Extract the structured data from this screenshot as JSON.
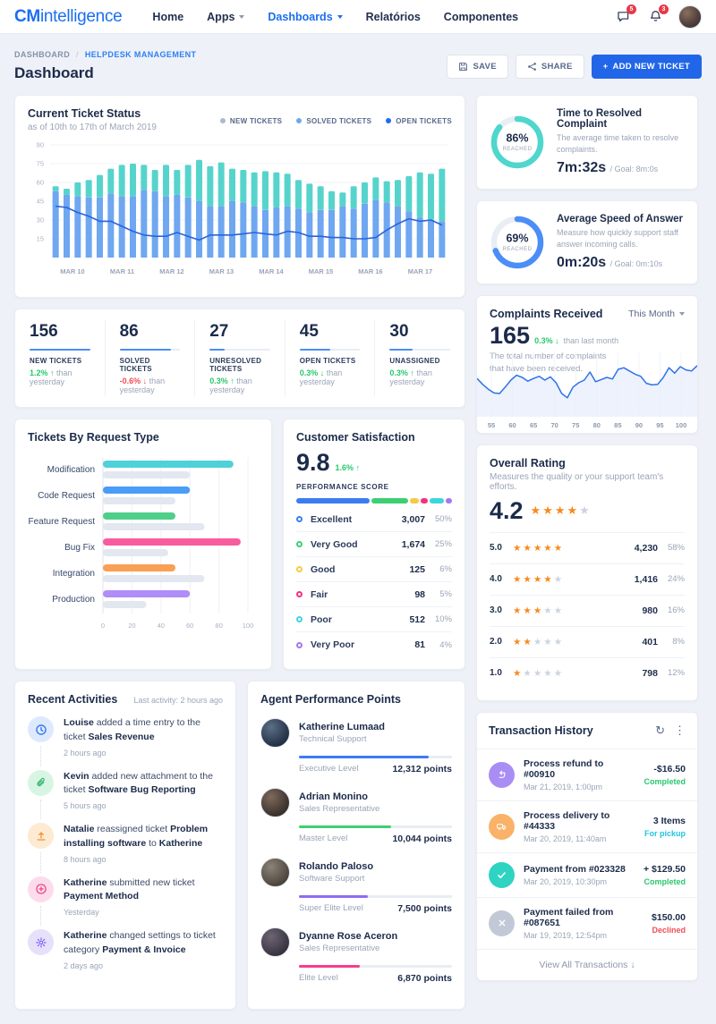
{
  "nav": {
    "brand_bold": "CM",
    "brand_rest": "intelligence",
    "items": [
      {
        "label": "Home"
      },
      {
        "label": "Apps",
        "dropdown": true
      },
      {
        "label": "Dashboards",
        "dropdown": true,
        "active": true
      },
      {
        "label": "Relatórios"
      },
      {
        "label": "Componentes"
      }
    ],
    "badges": {
      "messages": "5",
      "alerts": "3"
    }
  },
  "header": {
    "breadcrumb": [
      "DASHBOARD",
      "HELPDESK MANAGEMENT"
    ],
    "sep": "/",
    "title": "Dashboard",
    "save_label": "SAVE",
    "share_label": "SHARE",
    "add_ticket_label": "ADD NEW TICKET"
  },
  "ticket_status": {
    "title": "Current Ticket Status",
    "subtitle": "as of 10th to 17th of March 2019",
    "legend": [
      {
        "label": "NEW TICKETS",
        "color": "#aeb9c9"
      },
      {
        "label": "SOLVED TICKETS",
        "color": "#6fa7f0"
      },
      {
        "label": "OPEN TICKETS",
        "color": "#1f6bf2"
      }
    ]
  },
  "chart_data": [
    {
      "id": "ticket-status",
      "type": "bar",
      "title": "Current Ticket Status",
      "x_labels": [
        "MAR 10",
        "MAR 11",
        "MAR 12",
        "MAR 13",
        "MAR 14",
        "MAR 15",
        "MAR 16",
        "MAR 17"
      ],
      "ylim": [
        0,
        90
      ],
      "yticks": [
        15,
        30,
        45,
        60,
        75,
        90
      ],
      "series": [
        {
          "name": "SOLVED TICKETS",
          "type": "bar",
          "color": "#6fa7f0",
          "values": [
            53,
            50,
            49,
            48,
            48,
            51,
            49,
            49,
            54,
            53,
            49,
            50,
            48,
            45,
            41,
            41,
            45,
            44,
            41,
            38,
            40,
            41,
            39,
            36,
            38,
            38,
            41,
            39,
            43,
            46,
            44,
            41,
            37,
            32,
            30,
            29
          ]
        },
        {
          "name": "NEW TICKETS",
          "type": "bar-stacked-top",
          "color": "#56d4cc",
          "values": [
            4,
            5,
            11,
            14,
            18,
            20,
            25,
            26,
            20,
            17,
            25,
            20,
            26,
            33,
            32,
            35,
            26,
            26,
            27,
            31,
            28,
            26,
            23,
            23,
            19,
            15,
            11,
            18,
            17,
            18,
            17,
            21,
            28,
            36,
            37,
            42
          ]
        },
        {
          "name": "OPEN TICKETS",
          "type": "line",
          "color": "#2b63d9",
          "values": [
            41,
            40,
            36,
            33,
            29,
            29,
            25,
            21,
            18,
            17,
            17,
            20,
            17,
            14,
            18,
            18,
            18,
            19,
            20,
            19,
            18,
            21,
            20,
            17,
            17,
            16,
            16,
            15,
            15,
            16,
            22,
            27,
            31,
            29,
            30,
            26
          ]
        }
      ]
    },
    {
      "id": "request-type",
      "type": "bar",
      "title": "Tickets By Request Type",
      "categories": [
        "Modification",
        "Code Request",
        "Feature Request",
        "Bug Fix",
        "Integration",
        "Production"
      ],
      "xlim": [
        0,
        100
      ],
      "xticks": [
        0,
        20,
        40,
        60,
        80,
        100
      ],
      "series": [
        {
          "name": "current",
          "values": [
            90,
            60,
            50,
            95,
            50,
            60
          ],
          "colors": [
            "#4fd1d9",
            "#4a9cf8",
            "#4fcf8a",
            "#f85c9f",
            "#f9a054",
            "#b08df7"
          ]
        },
        {
          "name": "previous",
          "color": "#e2e7f0",
          "values": [
            60,
            50,
            70,
            45,
            70,
            30
          ]
        }
      ]
    },
    {
      "id": "complaints",
      "type": "area",
      "x_labels": [
        "55",
        "60",
        "65",
        "70",
        "75",
        "80",
        "85",
        "90",
        "95",
        "100"
      ],
      "color": "#2f72e8",
      "fill": "#e9effb",
      "values": [
        58,
        47,
        38,
        31,
        30,
        42,
        55,
        64,
        60,
        53,
        58,
        62,
        55,
        61,
        50,
        30,
        22,
        42,
        50,
        55,
        70,
        52,
        56,
        60,
        57,
        75,
        78,
        72,
        66,
        62,
        49,
        46,
        47,
        60,
        78,
        68,
        80,
        74,
        72,
        82
      ]
    }
  ],
  "stats": [
    {
      "value": "156",
      "label": "NEW TICKETS",
      "delta": "1.2%",
      "delta_dir": "up",
      "delta_color": "#29c76f",
      "rest": "than yesterday",
      "progress": 100
    },
    {
      "value": "86",
      "label": "SOLVED TICKETS",
      "delta": "-0.6%",
      "delta_dir": "down",
      "delta_color": "#ef4d56",
      "rest": "than yesterday",
      "progress": 85
    },
    {
      "value": "27",
      "label": "UNRESOLVED TICKETS",
      "delta": "0.3%",
      "delta_dir": "up",
      "delta_color": "#29c76f",
      "rest": "than yesterday",
      "progress": 25
    },
    {
      "value": "45",
      "label": "OPEN TICKETS",
      "delta": "0.3%",
      "delta_dir": "down",
      "delta_color": "#29c76f",
      "rest": "than yesterday",
      "progress": 50
    },
    {
      "value": "30",
      "label": "UNASSIGNED",
      "delta": "0.3%",
      "delta_dir": "up",
      "delta_color": "#29c76f",
      "rest": "than yesterday",
      "progress": 38
    }
  ],
  "satisfaction": {
    "title": "Customer Satisfaction",
    "score": "9.8",
    "delta": "1.6%",
    "delta_arrow": "↑",
    "score_label": "PERFORMANCE SCORE",
    "rows": [
      {
        "label": "Excellent",
        "color": "#3b7df0",
        "count": "3,007",
        "pct": "50%",
        "seg": 50
      },
      {
        "label": "Very Good",
        "color": "#3ecf72",
        "count": "1,674",
        "pct": "25%",
        "seg": 25
      },
      {
        "label": "Good",
        "color": "#f7c948",
        "count": "125",
        "pct": "6%",
        "seg": 6
      },
      {
        "label": "Fair",
        "color": "#f5317f",
        "count": "98",
        "pct": "5%",
        "seg": 5
      },
      {
        "label": "Poor",
        "color": "#3ed6dd",
        "count": "512",
        "pct": "10%",
        "seg": 10
      },
      {
        "label": "Very Poor",
        "color": "#a477f2",
        "count": "81",
        "pct": "4%",
        "seg": 4
      }
    ]
  },
  "goals": [
    {
      "pct": 86,
      "reached_label": "REACHED",
      "color": "#4fd6cd",
      "title": "Time to Resolved Complaint",
      "desc": "The average time taken to resolve complaints.",
      "value": "7m:32s",
      "goal": "/ Goal: 8m:0s"
    },
    {
      "pct": 69,
      "reached_label": "REACHED",
      "color": "#4b8ef7",
      "title": "Average Speed of Answer",
      "desc": "Measure how quickly support staff answer incoming calls.",
      "value": "0m:20s",
      "goal": "/ Goal: 0m:10s"
    }
  ],
  "complaints": {
    "title": "Complaints Received",
    "filter": "This Month",
    "value": "165",
    "delta": "0.3%",
    "delta_arrow": "↓",
    "rest": "than last month",
    "desc_l1": "The total number of complaints",
    "desc_l2": "that have been received."
  },
  "rating": {
    "title": "Overall Rating",
    "desc": "Measures the quality or your support team's efforts.",
    "score": "4.2",
    "score_stars": 4,
    "rows": [
      {
        "score": "5.0",
        "stars": 5,
        "count": "4,230",
        "pct": "58%"
      },
      {
        "score": "4.0",
        "stars": 4,
        "count": "1,416",
        "pct": "24%"
      },
      {
        "score": "3.0",
        "stars": 3,
        "count": "980",
        "pct": "16%"
      },
      {
        "score": "2.0",
        "stars": 2,
        "count": "401",
        "pct": "8%"
      },
      {
        "score": "1.0",
        "stars": 1,
        "count": "798",
        "pct": "12%"
      }
    ]
  },
  "activities": {
    "title": "Recent Activities",
    "meta": "Last activity: 2 hours ago",
    "items": [
      {
        "icon": "clock-icon",
        "icon_bg": "#ddeafe",
        "icon_color": "#2f72e8",
        "time": "2 hours ago",
        "segments": [
          {
            "t": "Louise",
            "b": 1
          },
          {
            "t": " added a time entry to the ticket ",
            "b": 0
          },
          {
            "t": "Sales Revenue",
            "b": 1
          }
        ]
      },
      {
        "icon": "paperclip-icon",
        "icon_bg": "#d8f5e3",
        "icon_color": "#2db36a",
        "time": "5 hours ago",
        "segments": [
          {
            "t": "Kevin",
            "b": 1
          },
          {
            "t": " added new attachment to the ticket ",
            "b": 0
          },
          {
            "t": "Software Bug Reporting",
            "b": 1
          }
        ]
      },
      {
        "icon": "upload-icon",
        "icon_bg": "#fdead2",
        "icon_color": "#f0942e",
        "time": "8 hours ago",
        "segments": [
          {
            "t": "Natalie",
            "b": 1
          },
          {
            "t": " reassigned ticket ",
            "b": 0
          },
          {
            "t": "Problem installing software",
            "b": 1
          },
          {
            "t": " to ",
            "b": 0
          },
          {
            "t": "Katherine",
            "b": 1
          }
        ]
      },
      {
        "icon": "plus-circle-icon",
        "icon_bg": "#fcdcec",
        "icon_color": "#e8447e",
        "time": "Yesterday",
        "segments": [
          {
            "t": "Katherine",
            "b": 1
          },
          {
            "t": " submitted new ticket ",
            "b": 0
          },
          {
            "t": "Payment Method",
            "b": 1
          }
        ]
      },
      {
        "icon": "gear-icon",
        "icon_bg": "#e6e0fb",
        "icon_color": "#7a5cf0",
        "time": "2 days ago",
        "segments": [
          {
            "t": "Katherine",
            "b": 1
          },
          {
            "t": " changed settings to ticket category ",
            "b": 0
          },
          {
            "t": "Payment & Invoice",
            "b": 1
          }
        ]
      }
    ]
  },
  "agents": {
    "title": "Agent Performance Points",
    "items": [
      {
        "name": "Katherine Lumaad",
        "role": "Technical Support",
        "level": "Executive Level",
        "points": "12,312 points",
        "progress": 85,
        "color": "#3b7df0",
        "avatar_bg": "radial-gradient(circle at 35% 30%, #5b6f85 0%, #2c3a50 60%, #16202e 100%)"
      },
      {
        "name": "Adrian Monino",
        "role": "Sales Representative",
        "level": "Master Level",
        "points": "10,044 points",
        "progress": 60,
        "color": "#3ecf72",
        "avatar_bg": "radial-gradient(circle at 35% 30%, #7d6a5c 0%, #453a33 60%, #241e1a 100%)"
      },
      {
        "name": "Rolando Paloso",
        "role": "Software Support",
        "level": "Super Elite Level",
        "points": "7,500 points",
        "progress": 45,
        "color": "#8f6bf5",
        "avatar_bg": "radial-gradient(circle at 35% 30%, #8b8378 0%, #575046 60%, #2e2a24 100%)"
      },
      {
        "name": "Dyanne Rose Aceron",
        "role": "Sales Representative",
        "level": "Elite Level",
        "points": "6,870 points",
        "progress": 40,
        "color": "#f53d8c",
        "avatar_bg": "radial-gradient(circle at 35% 30%, #6e6472 0%, #413c4a 60%, #232029 100%)"
      }
    ]
  },
  "transactions": {
    "title": "Transaction History",
    "items": [
      {
        "icon": "return-arrow-icon",
        "icon_bg": "#a98df5",
        "title": "Process refund to #00910",
        "datetime": "Mar 21, 2019, 1:00pm",
        "amount": "-$16.50",
        "status": "Completed",
        "status_color": "#29c76f"
      },
      {
        "icon": "truck-icon",
        "icon_bg": "#f9b267",
        "title": "Process delivery to #44333",
        "datetime": "Mar 20, 2019, 11:40am",
        "amount": "3 Items",
        "status": "For pickup",
        "status_color": "#21c6de"
      },
      {
        "icon": "check-icon",
        "icon_bg": "#2ed3c2",
        "title": "Payment from #023328",
        "datetime": "Mar 20, 2019, 10:30pm",
        "amount": "+ $129.50",
        "status": "Completed",
        "status_color": "#29c76f"
      },
      {
        "icon": "close-icon",
        "icon_bg": "#c2c9d6",
        "title": "Payment failed from #087651",
        "datetime": "Mar 19, 2019, 12:54pm",
        "amount": "$150.00",
        "status": "Declined",
        "status_color": "#ef4d56"
      }
    ],
    "footer": "View All Transactions"
  }
}
